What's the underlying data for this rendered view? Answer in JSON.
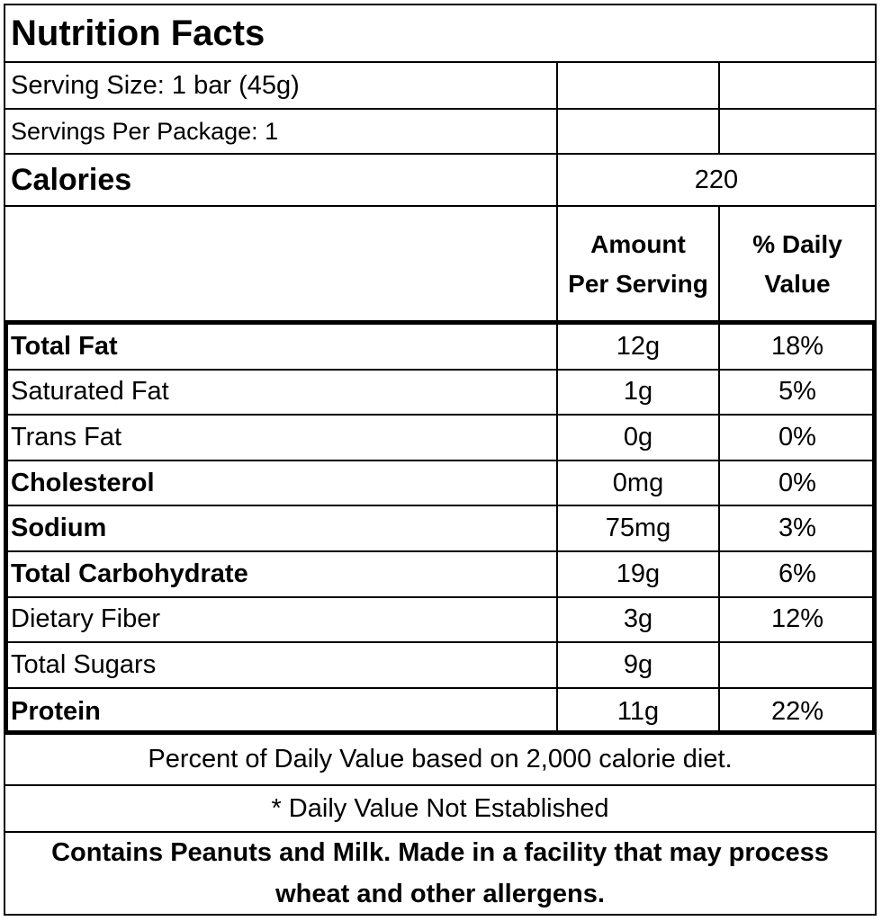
{
  "title": "Nutrition Facts",
  "serving_size": "Serving Size: 1 bar (45g)",
  "servings_per_package": "Servings Per Package: 1",
  "calories": {
    "label": "Calories",
    "value": "220"
  },
  "headers": {
    "amount_line1": "Amount",
    "amount_line2": "Per Serving",
    "dv_line1": "% Daily",
    "dv_line2": "Value"
  },
  "nutrients": [
    {
      "name": "Total Fat",
      "amount": "12g",
      "dv": "18%",
      "bold": true
    },
    {
      "name": "Saturated Fat",
      "amount": "1g",
      "dv": "5%",
      "bold": false
    },
    {
      "name": "Trans Fat",
      "amount": "0g",
      "dv": "0%",
      "bold": false
    },
    {
      "name": "Cholesterol",
      "amount": "0mg",
      "dv": "0%",
      "bold": true
    },
    {
      "name": "Sodium",
      "amount": "75mg",
      "dv": "3%",
      "bold": true
    },
    {
      "name": "Total Carbohydrate",
      "amount": "19g",
      "dv": "6%",
      "bold": true
    },
    {
      "name": "Dietary Fiber",
      "amount": "3g",
      "dv": "12%",
      "bold": false
    },
    {
      "name": "Total Sugars",
      "amount": "9g",
      "dv": "",
      "bold": false
    },
    {
      "name": "Protein",
      "amount": "11g",
      "dv": "22%",
      "bold": true
    }
  ],
  "footnote_dv": "Percent of Daily Value based on 2,000 calorie diet.",
  "footnote_not_established": "* Daily Value Not Established",
  "allergen_line1": "Contains Peanuts and Milk.  Made in a facility that may process",
  "allergen_line2": "wheat and other allergens."
}
